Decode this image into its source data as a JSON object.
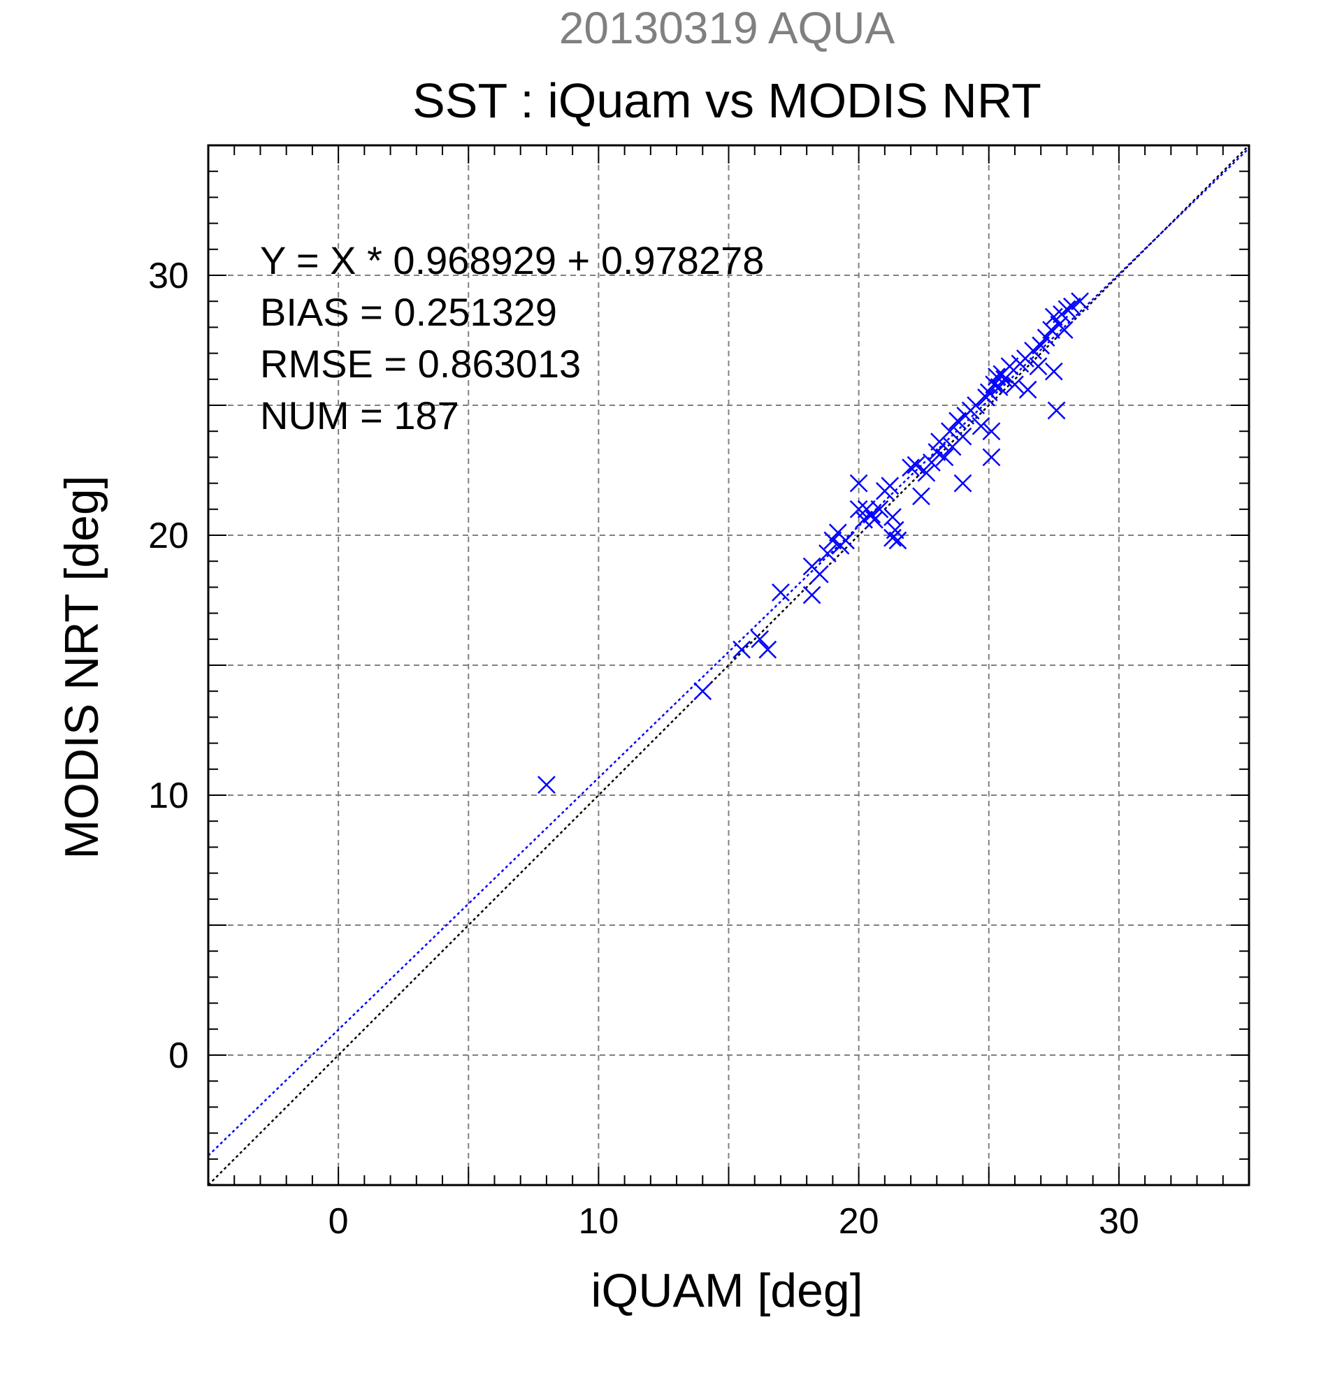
{
  "chart_data": {
    "type": "scatter",
    "title": "20130319 AQUA",
    "subtitle": "SST : iQuam vs MODIS NRT",
    "xlabel": "iQUAM [deg]",
    "ylabel": "MODIS NRT [deg]",
    "xlim": [
      -5,
      35
    ],
    "ylim": [
      -5,
      35
    ],
    "xticks": [
      0,
      10,
      20,
      30
    ],
    "yticks": [
      0,
      10,
      20,
      30
    ],
    "grid": true,
    "annotations": [
      "Y = X * 0.968929 + 0.978278",
      "BIAS = 0.251329",
      "RMSE = 0.863013",
      "NUM = 187"
    ],
    "regression": {
      "slope": 0.968929,
      "intercept": 0.978278
    },
    "colors": {
      "points": "#0000ff",
      "fit_line": "#0000ff",
      "one_to_one": "#000000",
      "grid": "#808080",
      "title": "#808080"
    },
    "points": [
      [
        8.0,
        10.4
      ],
      [
        14.0,
        14.0
      ],
      [
        15.5,
        15.6
      ],
      [
        16.2,
        16.0
      ],
      [
        16.5,
        15.6
      ],
      [
        17.0,
        17.8
      ],
      [
        18.2,
        17.7
      ],
      [
        18.2,
        18.8
      ],
      [
        18.5,
        18.5
      ],
      [
        18.8,
        19.3
      ],
      [
        19.0,
        19.8
      ],
      [
        19.2,
        20.1
      ],
      [
        19.3,
        19.6
      ],
      [
        19.5,
        19.8
      ],
      [
        20.0,
        21.0
      ],
      [
        20.0,
        22.0
      ],
      [
        20.2,
        20.6
      ],
      [
        20.3,
        21.0
      ],
      [
        20.5,
        20.8
      ],
      [
        20.6,
        20.6
      ],
      [
        20.8,
        21.0
      ],
      [
        21.0,
        21.7
      ],
      [
        21.2,
        21.9
      ],
      [
        21.3,
        20.7
      ],
      [
        21.3,
        19.9
      ],
      [
        21.4,
        20.2
      ],
      [
        21.5,
        19.8
      ],
      [
        22.0,
        22.6
      ],
      [
        22.2,
        22.7
      ],
      [
        22.4,
        21.5
      ],
      [
        22.6,
        22.4
      ],
      [
        22.8,
        22.8
      ],
      [
        23.0,
        23.2
      ],
      [
        23.1,
        23.6
      ],
      [
        23.3,
        23.0
      ],
      [
        23.5,
        24.0
      ],
      [
        23.6,
        23.4
      ],
      [
        23.8,
        24.4
      ],
      [
        24.0,
        23.8
      ],
      [
        24.0,
        22.0
      ],
      [
        24.1,
        24.6
      ],
      [
        24.3,
        24.8
      ],
      [
        24.5,
        25.0
      ],
      [
        24.7,
        24.2
      ],
      [
        24.9,
        25.3
      ],
      [
        25.0,
        25.5
      ],
      [
        25.1,
        24.0
      ],
      [
        25.1,
        23.0
      ],
      [
        25.2,
        25.8
      ],
      [
        25.3,
        26.1
      ],
      [
        25.4,
        25.7
      ],
      [
        25.5,
        26.2
      ],
      [
        25.6,
        26.0
      ],
      [
        25.8,
        26.5
      ],
      [
        26.0,
        25.8
      ],
      [
        26.2,
        26.6
      ],
      [
        26.4,
        26.8
      ],
      [
        26.5,
        25.6
      ],
      [
        26.7,
        27.1
      ],
      [
        26.9,
        26.5
      ],
      [
        27.0,
        27.3
      ],
      [
        27.2,
        27.6
      ],
      [
        27.4,
        27.9
      ],
      [
        27.5,
        28.4
      ],
      [
        27.5,
        26.3
      ],
      [
        27.6,
        24.8
      ],
      [
        27.7,
        28.1
      ],
      [
        27.8,
        28.5
      ],
      [
        27.9,
        27.9
      ],
      [
        28.0,
        28.7
      ],
      [
        28.2,
        28.8
      ],
      [
        28.5,
        29.0
      ]
    ]
  }
}
